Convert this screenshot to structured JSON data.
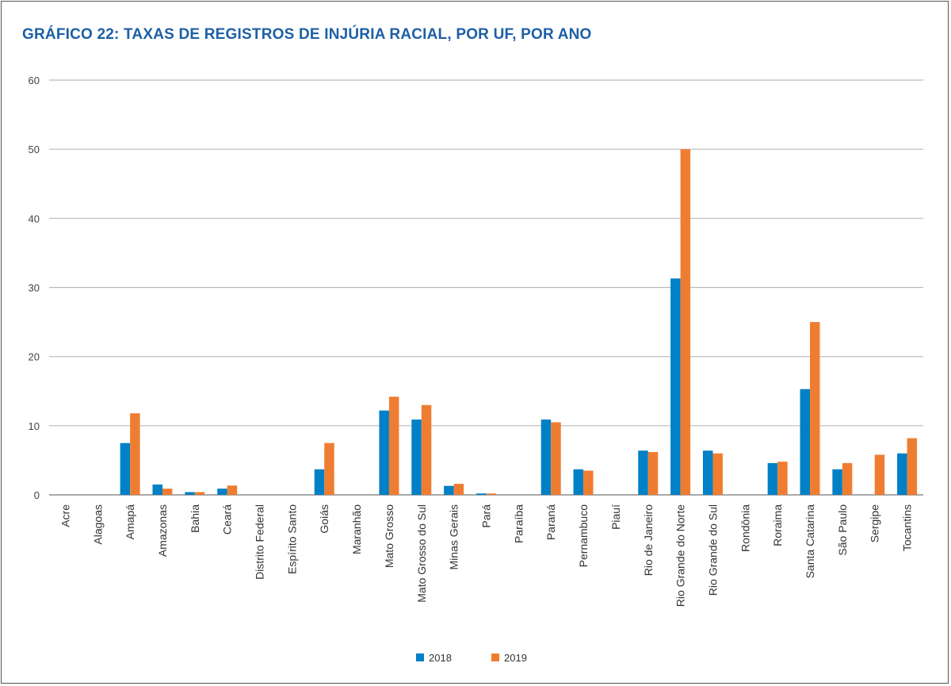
{
  "chart_data": {
    "type": "bar",
    "title": "GRÁFICO 22: TAXAS DE REGISTROS DE INJÚRIA RACIAL, POR UF, POR ANO",
    "xlabel": "",
    "ylabel": "",
    "ylim": [
      0,
      60
    ],
    "yticks": [
      0,
      10,
      20,
      30,
      40,
      50,
      60
    ],
    "grid": true,
    "legend_position": "bottom",
    "categories": [
      "Acre",
      "Alagoas",
      "Amapá",
      "Amazonas",
      "Bahia",
      "Ceará",
      "Distrito Federal",
      "Espírito Santo",
      "Goiás",
      "Maranhão",
      "Mato Grosso",
      "Mato Grosso do Sul",
      "Minas Gerais",
      "Pará",
      "Paraíba",
      "Paraná",
      "Pernambuco",
      "Piauí",
      "Rio de Janeiro",
      "Rio Grande do Norte",
      "Rio Grande do Sul",
      "Rondônia",
      "Roraima",
      "Santa Catarina",
      "São Paulo",
      "Sergipe",
      "Tocantins"
    ],
    "series": [
      {
        "name": "2018",
        "color": "#0080c6",
        "values": [
          null,
          null,
          7.5,
          1.5,
          0.4,
          0.9,
          null,
          null,
          3.7,
          null,
          12.2,
          10.9,
          1.3,
          0.2,
          null,
          10.9,
          3.7,
          null,
          6.4,
          31.3,
          6.4,
          null,
          4.6,
          15.3,
          3.7,
          null,
          6.0
        ]
      },
      {
        "name": "2019",
        "color": "#ef7d31",
        "values": [
          null,
          null,
          11.8,
          0.9,
          0.4,
          1.35,
          null,
          null,
          7.5,
          null,
          14.2,
          13.0,
          1.6,
          0.2,
          null,
          10.5,
          3.5,
          null,
          6.2,
          50.0,
          6.0,
          null,
          4.8,
          25.0,
          4.6,
          5.8,
          8.2
        ]
      }
    ]
  }
}
